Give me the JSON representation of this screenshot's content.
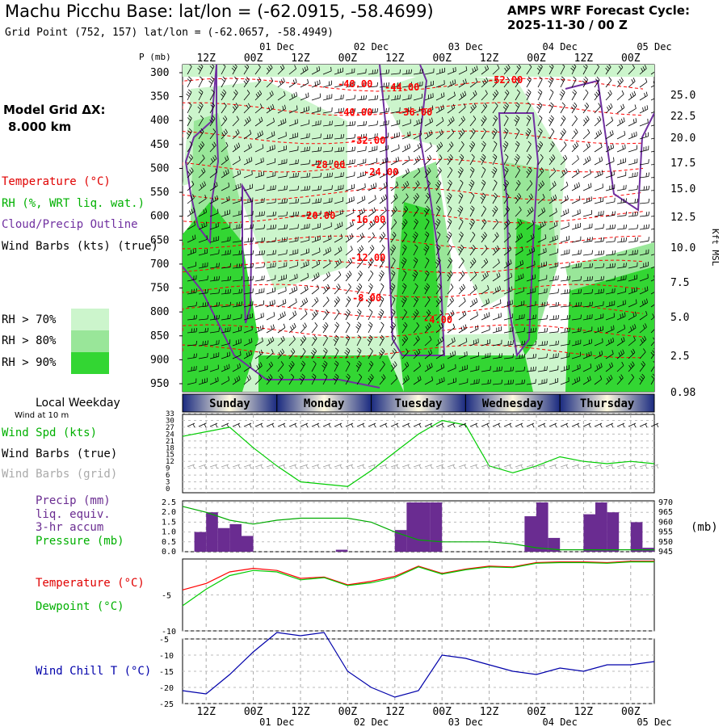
{
  "header": {
    "title": "Machu Picchu Base:  lat/lon = (-62.0915, -58.4699)",
    "grid_point": "Grid Point (752, 157) lat/lon = (-62.0657, -58.4949)",
    "cycle_line1": "AMPS WRF Forecast Cycle:",
    "cycle_line2": "2025-11-30 / 00  Z"
  },
  "model_grid": {
    "line1": "Model Grid ΔX:",
    "line2": "8.000 km"
  },
  "legend": {
    "temperature": "Temperature (°C)",
    "rh": "RH (%, WRT liq. wat.)",
    "cloud": "Cloud/Precip Outline",
    "wind_barbs": "Wind Barbs (kts) (true)",
    "rh70": "RH > 70%",
    "rh80": "RH > 80%",
    "rh90": "RH > 90%",
    "rh70_color": "#ccf5cc",
    "rh80_color": "#99e699",
    "rh90_color": "#33d633"
  },
  "colors": {
    "temperature": "#ff0000",
    "rh": "#00cc00",
    "cloud": "#7030a0",
    "wind": "#000000",
    "wind_grid": "#999999",
    "dewpoint": "#00cc00",
    "pressure": "#00aa00",
    "precip": "#6a2c91",
    "windchill": "#0000aa",
    "temp_label": "#ff0000"
  },
  "time_axis": {
    "top_labels": [
      "12Z",
      "00Z",
      "12Z",
      "00Z",
      "12Z",
      "00Z",
      "12Z",
      "00Z",
      "12Z",
      "00Z"
    ],
    "date_labels": [
      "01 Dec",
      "02 Dec",
      "03 Dec",
      "04 Dec",
      "05 Dec"
    ]
  },
  "weekday": {
    "title": "Local Weekday",
    "wind_at": "Wind at 10 m",
    "days": [
      "Sunday",
      "Monday",
      "Tuesday",
      "Wednesday",
      "Thursday"
    ]
  },
  "panel_labels": {
    "wind_spd": "Wind Spd (kts)",
    "wind_barbs_true": "Wind Barbs (true)",
    "wind_barbs_grid": "Wind Barbs (grid)",
    "precip": "Precip (mm)",
    "liq": "liq. equiv.",
    "accum": "3-hr accum",
    "pressure": "Pressure (mb)",
    "mb_unit": "(mb)",
    "temperature": "Temperature (°C)",
    "dewpoint": "Dewpoint (°C)",
    "windchill": "Wind Chill T (°C)"
  },
  "chart_data": [
    {
      "type": "heatmap",
      "ylabel": "P (mb)",
      "y2label": "Kft MSL",
      "pressure_ticks": [
        300,
        350,
        400,
        450,
        500,
        550,
        600,
        650,
        700,
        750,
        800,
        850,
        900,
        950
      ],
      "height_ticks": [
        "25.0",
        "22.5",
        "20.0",
        "17.5",
        "15.0",
        "12.5",
        "10.0",
        "7.5",
        "5.0",
        "2.5",
        "0.98"
      ],
      "temperature_labels": [
        "-48.00",
        "-44.00",
        "-52.00",
        "-40.00",
        "-36.00",
        "-32.00",
        "-28.00",
        "-24.00",
        "-20.00",
        "-16.00",
        "-12.00",
        "-8.00",
        "-4.00"
      ]
    },
    {
      "type": "line",
      "x_hours": [
        0,
        6,
        12,
        18,
        24,
        30,
        36,
        42,
        48,
        54,
        60,
        66,
        72,
        78,
        84,
        90,
        96,
        102,
        108,
        114,
        120
      ],
      "y_ticks": [
        0,
        3,
        6,
        9,
        12,
        15,
        18,
        21,
        24,
        27,
        30,
        33
      ],
      "series": [
        {
          "name": "Wind Spd (kts)",
          "values": [
            23,
            25,
            27,
            18,
            10,
            3,
            2,
            1,
            8,
            16,
            24,
            30,
            28,
            10,
            7,
            10,
            14,
            12,
            11,
            12,
            11
          ]
        }
      ]
    },
    {
      "type": "bar",
      "x_hours": [
        0,
        6,
        12,
        18,
        24,
        30,
        36,
        42,
        48,
        54,
        60,
        66,
        72,
        78,
        84,
        90,
        96,
        102,
        108,
        114,
        120
      ],
      "y_ticks": [
        "0.0",
        "0.5",
        "1.0",
        "1.5",
        "2.0",
        "2.5"
      ],
      "y2_ticks": [
        945,
        950,
        955,
        960,
        965,
        970
      ],
      "precip_bars": [
        {
          "start": 3,
          "end": 6,
          "value": 1.0
        },
        {
          "start": 6,
          "end": 9,
          "value": 2.0
        },
        {
          "start": 9,
          "end": 12,
          "value": 1.2
        },
        {
          "start": 12,
          "end": 15,
          "value": 1.4
        },
        {
          "start": 15,
          "end": 18,
          "value": 0.8
        },
        {
          "start": 39,
          "end": 42,
          "value": 0.1
        },
        {
          "start": 54,
          "end": 57,
          "value": 1.1
        },
        {
          "start": 57,
          "end": 60,
          "value": 2.5
        },
        {
          "start": 60,
          "end": 63,
          "value": 2.5
        },
        {
          "start": 63,
          "end": 66,
          "value": 2.5
        },
        {
          "start": 87,
          "end": 90,
          "value": 1.8
        },
        {
          "start": 90,
          "end": 93,
          "value": 2.5
        },
        {
          "start": 93,
          "end": 96,
          "value": 0.7
        },
        {
          "start": 102,
          "end": 105,
          "value": 1.9
        },
        {
          "start": 105,
          "end": 108,
          "value": 2.5
        },
        {
          "start": 108,
          "end": 111,
          "value": 2.0
        },
        {
          "start": 114,
          "end": 117,
          "value": 1.5
        },
        {
          "start": 117,
          "end": 120,
          "value": 0.2
        }
      ],
      "pressure": [
        968,
        965,
        961,
        959,
        961,
        962,
        962,
        962,
        960,
        955,
        951,
        950,
        950,
        950,
        949,
        947,
        946,
        946,
        946,
        946,
        946
      ]
    },
    {
      "type": "line",
      "x_hours": [
        0,
        6,
        12,
        18,
        24,
        30,
        36,
        42,
        48,
        54,
        60,
        66,
        72,
        78,
        84,
        90,
        96,
        102,
        108,
        114,
        120
      ],
      "y_ticks": [
        -5,
        -10
      ],
      "ylim": [
        -10,
        0
      ],
      "series": [
        {
          "name": "Temperature (°C)",
          "values": [
            -4.3,
            -3.4,
            -1.8,
            -1.3,
            -1.6,
            -2.7,
            -2.5,
            -3.6,
            -3.1,
            -2.4,
            -1.0,
            -2.0,
            -1.4,
            -1.0,
            -1.1,
            -0.5,
            -0.4,
            -0.4,
            -0.5,
            -0.3,
            -0.3
          ]
        },
        {
          "name": "Dewpoint (°C)",
          "values": [
            -6.5,
            -4.2,
            -2.3,
            -1.6,
            -1.8,
            -2.9,
            -2.6,
            -3.7,
            -3.3,
            -2.6,
            -1.1,
            -2.1,
            -1.5,
            -1.1,
            -1.2,
            -0.6,
            -0.5,
            -0.5,
            -0.6,
            -0.4,
            -0.4
          ]
        }
      ]
    },
    {
      "type": "line",
      "x_hours": [
        0,
        6,
        12,
        18,
        24,
        30,
        36,
        42,
        48,
        54,
        60,
        66,
        72,
        78,
        84,
        90,
        96,
        102,
        108,
        114,
        120
      ],
      "y_ticks": [
        -5,
        -10,
        -15,
        -20,
        -25
      ],
      "ylim": [
        -25,
        -5
      ],
      "series": [
        {
          "name": "Wind Chill T (°C)",
          "values": [
            -21,
            -22,
            -16,
            -9,
            -3,
            -4,
            -3,
            -15,
            -20,
            -23,
            -21,
            -10,
            -11,
            -13,
            -15,
            -16,
            -14,
            -15,
            -13,
            -13,
            -12
          ]
        }
      ]
    }
  ]
}
